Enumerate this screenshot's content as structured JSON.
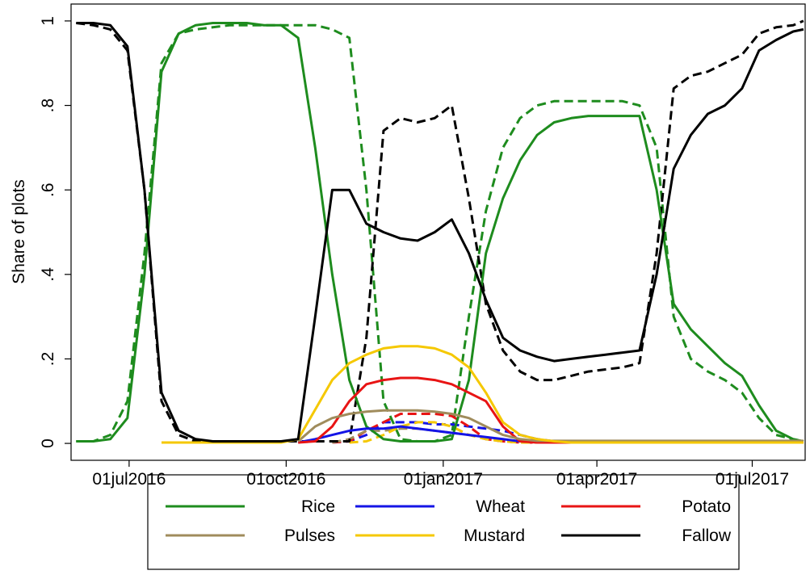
{
  "chart_data": {
    "type": "line",
    "y_label": "Share of plots",
    "x": [
      "2016-05-31",
      "2016-06-10",
      "2016-06-20",
      "2016-06-30",
      "2016-07-10",
      "2016-07-20",
      "2016-07-30",
      "2016-08-09",
      "2016-08-19",
      "2016-08-29",
      "2016-09-08",
      "2016-09-18",
      "2016-09-28",
      "2016-10-08",
      "2016-10-18",
      "2016-10-28",
      "2016-11-07",
      "2016-11-17",
      "2016-11-27",
      "2016-12-07",
      "2016-12-17",
      "2016-12-27",
      "2017-01-06",
      "2017-01-16",
      "2017-01-26",
      "2017-02-05",
      "2017-02-15",
      "2017-02-25",
      "2017-03-07",
      "2017-03-17",
      "2017-03-27",
      "2017-04-06",
      "2017-04-16",
      "2017-04-26",
      "2017-05-06",
      "2017-05-16",
      "2017-05-26",
      "2017-06-05",
      "2017-06-15",
      "2017-06-25",
      "2017-07-05",
      "2017-07-15",
      "2017-07-25",
      "2017-07-31"
    ],
    "xlim": [
      "2016-05-28",
      "2017-08-01"
    ],
    "xticks": [
      {
        "value": "2016-07-01",
        "label": "01jul2016"
      },
      {
        "value": "2016-10-01",
        "label": "01oct2016"
      },
      {
        "value": "2017-01-01",
        "label": "01jan2017"
      },
      {
        "value": "2017-04-01",
        "label": "01apr2017"
      },
      {
        "value": "2017-07-01",
        "label": "01jul2017"
      }
    ],
    "ylim": [
      -0.04,
      1.04
    ],
    "yticks": [
      0,
      {
        "value": 0.2,
        "label": ".2"
      },
      {
        "value": 0.4,
        "label": ".4"
      },
      {
        "value": 0.6,
        "label": ".6"
      },
      {
        "value": 0.8,
        "label": ".8"
      },
      1
    ],
    "grid": false,
    "series": [
      {
        "name": "Rice",
        "color": "#1e8c1e",
        "values": [
          0.005,
          0.005,
          0.01,
          0.06,
          0.4,
          0.88,
          0.97,
          0.99,
          0.995,
          0.995,
          0.995,
          0.99,
          0.99,
          0.96,
          0.7,
          0.4,
          0.15,
          0.04,
          0.01,
          0.005,
          0.005,
          0.005,
          0.01,
          0.15,
          0.45,
          0.58,
          0.67,
          0.73,
          0.76,
          0.77,
          0.775,
          0.775,
          0.775,
          0.775,
          0.6,
          0.33,
          0.27,
          0.23,
          0.19,
          0.16,
          0.09,
          0.03,
          0.01,
          0.005
        ],
        "dashed_values": [
          0.005,
          0.005,
          0.02,
          0.1,
          0.45,
          0.9,
          0.97,
          0.98,
          0.985,
          0.99,
          0.99,
          0.99,
          0.99,
          0.99,
          0.99,
          0.98,
          0.96,
          0.6,
          0.1,
          0.01,
          0.005,
          0.005,
          0.02,
          0.3,
          0.55,
          0.7,
          0.77,
          0.8,
          0.81,
          0.81,
          0.81,
          0.81,
          0.81,
          0.8,
          0.7,
          0.3,
          0.2,
          0.17,
          0.15,
          0.12,
          0.06,
          0.02,
          0.01,
          0.005
        ]
      },
      {
        "name": "Wheat",
        "color": "#1414e6",
        "values": [
          null,
          null,
          null,
          null,
          null,
          null,
          null,
          null,
          null,
          null,
          null,
          null,
          null,
          0.002,
          0.01,
          0.02,
          0.03,
          0.035,
          0.035,
          0.04,
          0.035,
          0.03,
          0.025,
          0.02,
          0.015,
          0.01,
          0.005,
          0.003,
          0.003,
          0.003,
          0.003,
          0.003,
          0.003,
          0.003,
          0.003,
          0.003,
          0.003,
          0.003,
          0.003,
          0.003,
          0.003,
          0.003,
          0.003,
          0.003
        ],
        "dashed_values": [
          null,
          null,
          null,
          null,
          null,
          null,
          null,
          null,
          null,
          null,
          null,
          null,
          null,
          null,
          null,
          0.002,
          0.005,
          0.02,
          0.05,
          0.05,
          0.05,
          0.045,
          0.045,
          0.04,
          0.035,
          0.03,
          0.02,
          0.01,
          0.005,
          0.003,
          0.003,
          0.003,
          0.003,
          0.003,
          0.003,
          0.003,
          0.003,
          0.003,
          0.003,
          0.003,
          0.003,
          0.003,
          0.003,
          0.003
        ]
      },
      {
        "name": "Potato",
        "color": "#e81414",
        "values": [
          null,
          null,
          null,
          null,
          null,
          null,
          null,
          null,
          null,
          null,
          null,
          null,
          null,
          0.002,
          0.005,
          0.04,
          0.1,
          0.14,
          0.15,
          0.155,
          0.155,
          0.15,
          0.14,
          0.12,
          0.1,
          0.04,
          0.005,
          0.002,
          0.002,
          0.002,
          0.002,
          0.002,
          0.002,
          0.002,
          0.002,
          0.002,
          0.002,
          0.002,
          0.002,
          0.002,
          0.002,
          0.002,
          0.002,
          0.002
        ],
        "dashed_values": [
          null,
          null,
          null,
          null,
          null,
          null,
          null,
          null,
          null,
          null,
          null,
          null,
          null,
          null,
          null,
          0.002,
          0.005,
          0.03,
          0.05,
          0.07,
          0.07,
          0.07,
          0.065,
          0.04,
          0.01,
          0.005,
          0.002,
          0.002,
          0.002,
          0.002,
          0.002,
          0.002,
          0.002,
          0.002,
          0.002,
          0.002,
          0.002,
          0.002,
          0.002,
          0.002,
          0.002,
          0.002,
          0.002,
          0.002
        ]
      },
      {
        "name": "Pulses",
        "color": "#a08c5c",
        "values": [
          null,
          null,
          null,
          null,
          null,
          null,
          null,
          null,
          null,
          null,
          null,
          null,
          null,
          0.005,
          0.04,
          0.06,
          0.07,
          0.075,
          0.078,
          0.078,
          0.078,
          0.075,
          0.07,
          0.06,
          0.04,
          0.02,
          0.01,
          0.006,
          0.006,
          0.006,
          0.006,
          0.006,
          0.006,
          0.006,
          0.006,
          0.006,
          0.006,
          0.006,
          0.006,
          0.006,
          0.006,
          0.006,
          0.006,
          0.006
        ],
        "dashed_values": [
          null,
          null,
          null,
          null,
          null,
          null,
          null,
          null,
          null,
          null,
          null,
          null,
          null,
          null,
          null,
          0.002,
          0.01,
          0.03,
          0.03,
          0.035,
          0.035,
          0.03,
          0.025,
          0.02,
          0.01,
          0.005,
          0.005,
          0.005,
          0.005,
          0.005,
          0.005,
          0.005,
          0.005,
          0.005,
          0.005,
          0.005,
          0.005,
          0.005,
          0.005,
          0.005,
          0.005,
          0.005,
          0.005,
          0.005
        ]
      },
      {
        "name": "Mustard",
        "color": "#f5c800",
        "values": [
          null,
          null,
          null,
          null,
          null,
          0.002,
          0.002,
          0.002,
          0.002,
          0.002,
          0.002,
          0.002,
          0.002,
          0.01,
          0.08,
          0.15,
          0.19,
          0.21,
          0.225,
          0.23,
          0.23,
          0.225,
          0.21,
          0.18,
          0.12,
          0.05,
          0.02,
          0.01,
          0.005,
          0.002,
          0.002,
          0.002,
          0.002,
          0.002,
          0.002,
          0.002,
          0.002,
          0.002,
          0.002,
          0.002,
          0.002,
          0.002,
          0.002,
          0.002
        ],
        "dashed_values": [
          null,
          null,
          null,
          null,
          null,
          null,
          null,
          null,
          null,
          null,
          null,
          null,
          null,
          null,
          null,
          null,
          0.002,
          0.005,
          0.02,
          0.04,
          0.05,
          0.05,
          0.04,
          0.02,
          0.01,
          0.005,
          0.002,
          0.002,
          null,
          null,
          null,
          null,
          null,
          null,
          null,
          null,
          null,
          null,
          null,
          null,
          null,
          null,
          null,
          null
        ]
      },
      {
        "name": "Fallow",
        "color": "#000000",
        "values": [
          0.995,
          0.995,
          0.99,
          0.94,
          0.6,
          0.12,
          0.03,
          0.01,
          0.005,
          0.005,
          0.005,
          0.005,
          0.005,
          0.01,
          0.3,
          0.6,
          0.6,
          0.52,
          0.5,
          0.485,
          0.48,
          0.5,
          0.53,
          0.45,
          0.34,
          0.25,
          0.22,
          0.205,
          0.195,
          0.2,
          0.205,
          0.21,
          0.215,
          0.22,
          0.4,
          0.65,
          0.73,
          0.78,
          0.8,
          0.84,
          0.93,
          0.955,
          0.975,
          0.98
        ],
        "dashed_values": [
          0.995,
          0.99,
          0.98,
          0.93,
          0.6,
          0.1,
          0.02,
          0.005,
          0.005,
          0.005,
          0.005,
          0.005,
          0.005,
          0.005,
          0.005,
          0.005,
          0.005,
          0.25,
          0.74,
          0.77,
          0.76,
          0.77,
          0.8,
          0.58,
          0.33,
          0.22,
          0.17,
          0.15,
          0.15,
          0.16,
          0.17,
          0.175,
          0.18,
          0.19,
          0.45,
          0.84,
          0.87,
          0.88,
          0.9,
          0.92,
          0.97,
          0.985,
          0.99,
          1
        ]
      }
    ]
  }
}
